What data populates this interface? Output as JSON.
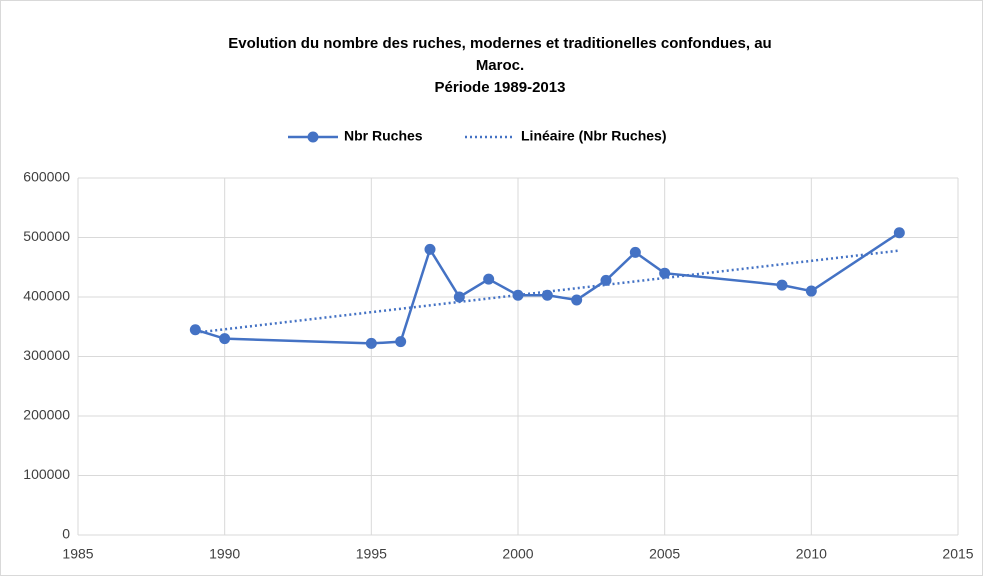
{
  "chart_data": {
    "type": "scatter-line",
    "title": [
      "Evolution du nombre des ruches, modernes et traditionelles confondues, au",
      "Maroc.",
      "Période 1989-2013"
    ],
    "series": [
      {
        "name": "Nbr Ruches",
        "color": "#4472c4",
        "style": "solid-markers",
        "x": [
          1989,
          1990,
          1995,
          1996,
          1997,
          1998,
          1999,
          2000,
          2001,
          2002,
          2003,
          2004,
          2005,
          2009,
          2010,
          2013
        ],
        "values": [
          345000,
          330000,
          322000,
          325000,
          480000,
          400000,
          430000,
          403000,
          403000,
          395000,
          428000,
          475000,
          440000,
          420000,
          410000,
          508000
        ]
      },
      {
        "name": "Linéaire (Nbr Ruches)",
        "color": "#4472c4",
        "style": "dotted",
        "x": [
          1989,
          2013
        ],
        "values": [
          340000,
          478000
        ]
      }
    ],
    "xlim": [
      1985,
      2015
    ],
    "xticks": [
      1985,
      1990,
      1995,
      2000,
      2005,
      2010,
      2015
    ],
    "ylim": [
      0,
      600000
    ],
    "yticks": [
      0,
      100000,
      200000,
      300000,
      400000,
      500000,
      600000
    ],
    "grid": true,
    "legend": "top"
  }
}
